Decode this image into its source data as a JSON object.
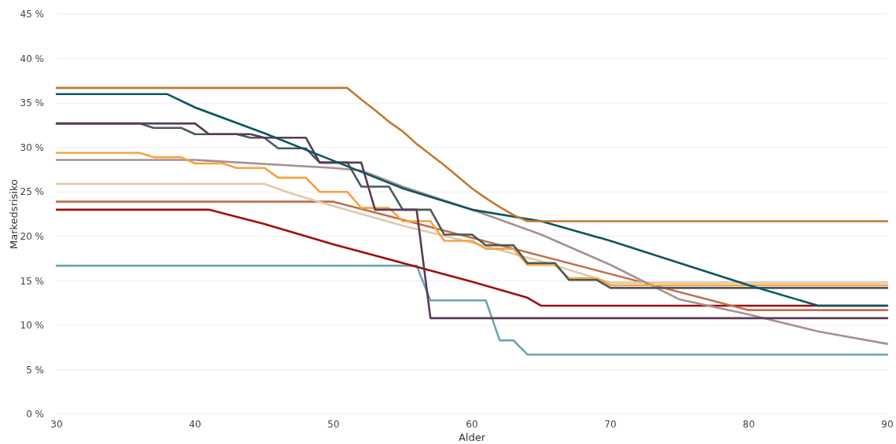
{
  "chart_data": {
    "type": "line",
    "xlabel": "Alder",
    "ylabel": "Markedsrisiko",
    "xlim": [
      30,
      90
    ],
    "xticks": [
      30,
      40,
      50,
      60,
      70,
      80,
      90
    ],
    "ylim": [
      0,
      45
    ],
    "yticks": [
      {
        "value": 0,
        "label": "0 %"
      },
      {
        "value": 5,
        "label": "5 %"
      },
      {
        "value": 10,
        "label": "10 %"
      },
      {
        "value": 15,
        "label": "15 %"
      },
      {
        "value": 20,
        "label": "20 %"
      },
      {
        "value": 25,
        "label": "25 %"
      },
      {
        "value": 30,
        "label": "30 %"
      },
      {
        "value": 35,
        "label": "35 %"
      },
      {
        "value": 40,
        "label": "40 %"
      },
      {
        "value": 45,
        "label": "45 %"
      }
    ],
    "grid": "y",
    "line_style": "solid",
    "series": [
      {
        "color": "#6fa3b3",
        "x": [
          30,
          56,
          57,
          61,
          62,
          63,
          64,
          90
        ],
        "values": [
          16.7,
          16.7,
          12.8,
          12.8,
          8.3,
          8.3,
          6.7,
          6.7
        ]
      },
      {
        "color": "#a00d0d",
        "x": [
          30,
          41,
          45,
          50,
          55,
          60,
          64,
          65,
          90
        ],
        "values": [
          23.0,
          23.0,
          21.4,
          19.1,
          17.0,
          14.9,
          13.1,
          12.2,
          12.2
        ]
      },
      {
        "color": "#c0704e",
        "x": [
          30,
          50,
          80,
          90
        ],
        "values": [
          23.9,
          23.9,
          11.7,
          11.7
        ]
      },
      {
        "color": "#e0c8a8",
        "x": [
          30,
          45,
          47,
          50,
          55,
          60,
          65,
          70,
          90
        ],
        "values": [
          25.9,
          25.9,
          24.8,
          23.4,
          21.2,
          19.3,
          17.2,
          14.8,
          14.8
        ]
      },
      {
        "color": "#a89090",
        "x": [
          30,
          40,
          50,
          52,
          55,
          60,
          65,
          70,
          75,
          80,
          85,
          90
        ],
        "values": [
          28.6,
          28.6,
          27.7,
          27.4,
          25.6,
          23.0,
          20.2,
          16.8,
          12.9,
          11.2,
          9.3,
          7.9
        ]
      },
      {
        "color": "#f7a13e",
        "x": [
          30,
          36,
          37,
          39,
          40,
          42,
          43,
          45,
          46,
          48,
          49,
          51,
          52,
          54,
          55,
          57,
          58,
          60,
          61,
          63,
          64,
          66,
          67,
          69,
          70,
          90
        ],
        "values": [
          29.4,
          29.4,
          28.9,
          28.9,
          28.2,
          28.2,
          27.7,
          27.7,
          26.6,
          26.6,
          25.0,
          25.0,
          23.2,
          23.2,
          21.7,
          21.7,
          19.5,
          19.5,
          18.6,
          18.6,
          16.8,
          16.8,
          15.3,
          15.3,
          14.5,
          14.5
        ]
      },
      {
        "color": "#4a5a5a",
        "x": [
          30,
          36,
          37,
          39,
          40,
          43,
          44,
          45,
          46,
          48,
          49,
          51,
          52,
          54,
          55,
          57,
          58,
          60,
          61,
          63,
          64,
          66,
          67,
          69,
          70,
          90
        ],
        "values": [
          32.7,
          32.7,
          32.2,
          32.2,
          31.5,
          31.5,
          31.1,
          31.1,
          29.9,
          29.9,
          28.3,
          28.3,
          25.6,
          25.6,
          23.0,
          23.0,
          20.2,
          20.2,
          19.0,
          19.0,
          17.0,
          17.0,
          15.1,
          15.1,
          14.2,
          14.2
        ]
      },
      {
        "color": "#5a3a55",
        "x": [
          30,
          40,
          41,
          44,
          45,
          48,
          49,
          52,
          53,
          56,
          57,
          90
        ],
        "values": [
          32.7,
          32.7,
          31.5,
          31.5,
          31.1,
          31.1,
          28.3,
          28.3,
          23.0,
          23.0,
          10.8,
          10.8
        ]
      },
      {
        "color": "#0b5563",
        "x": [
          30,
          38,
          40,
          45,
          50,
          55,
          60,
          65,
          70,
          80,
          85,
          90
        ],
        "values": [
          36.0,
          36.0,
          34.5,
          31.6,
          28.5,
          25.4,
          23.0,
          21.7,
          19.5,
          14.5,
          12.2,
          12.2
        ]
      },
      {
        "color": "#c07a2e",
        "x": [
          30,
          51,
          52,
          53,
          54,
          55,
          56,
          57,
          58,
          59,
          60,
          61,
          62,
          63,
          64,
          90
        ],
        "values": [
          36.7,
          36.7,
          35.4,
          34.2,
          32.9,
          31.8,
          30.4,
          29.2,
          28.0,
          26.7,
          25.4,
          24.3,
          23.3,
          22.4,
          21.7,
          21.7
        ]
      }
    ]
  }
}
